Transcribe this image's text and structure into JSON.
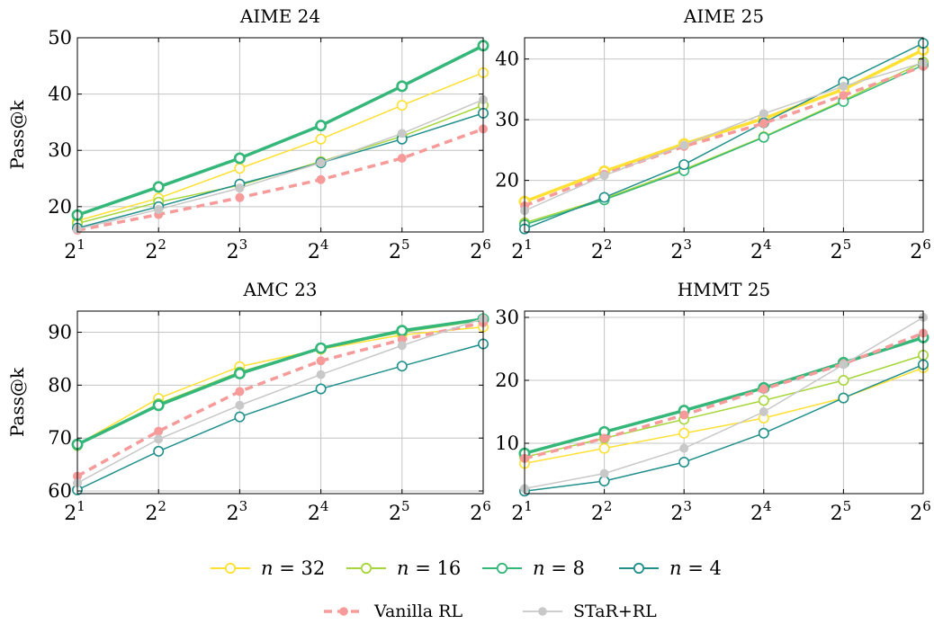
{
  "x_tick_base": "2",
  "x_tick_exponents": [
    "1",
    "2",
    "3",
    "4",
    "5",
    "6"
  ],
  "chart_data": [
    {
      "type": "line",
      "title": "AIME 24",
      "ylabel": "Pass@k",
      "x": [
        2,
        4,
        8,
        16,
        32,
        64
      ],
      "ylim": [
        15.5,
        50
      ],
      "yticks": [
        20,
        30,
        40,
        50
      ],
      "grid": true,
      "series": [
        {
          "name": "n = 32",
          "color": "#ffe033",
          "width": 1.5,
          "dash": "",
          "marker": "open",
          "values": [
            17.5,
            21.5,
            26.8,
            32.0,
            38.0,
            43.8
          ]
        },
        {
          "name": "n = 16",
          "color": "#a6d63a",
          "width": 1.5,
          "dash": "",
          "marker": "open",
          "values": [
            17.0,
            20.8,
            23.8,
            28.0,
            32.5,
            38.0
          ]
        },
        {
          "name": "n = 8",
          "color": "#35b779",
          "width": 3.5,
          "dash": "",
          "marker": "open",
          "values": [
            18.5,
            23.5,
            28.6,
            34.4,
            41.4,
            48.6
          ]
        },
        {
          "name": "n = 4",
          "color": "#21908d",
          "width": 1.5,
          "dash": "",
          "marker": "open",
          "values": [
            16.2,
            20.0,
            24.0,
            27.8,
            32.0,
            36.6
          ]
        },
        {
          "name": "Vanilla RL",
          "color": "#f79a9a",
          "width": 3.5,
          "dash": "9,6",
          "marker": "dot",
          "values": [
            15.8,
            18.6,
            21.6,
            24.8,
            28.6,
            33.8
          ]
        },
        {
          "name": "STaR+RL",
          "color": "#c8c8c8",
          "width": 1.5,
          "dash": "",
          "marker": "dot",
          "values": [
            16.0,
            19.5,
            23.3,
            27.8,
            33.0,
            39.0
          ]
        }
      ]
    },
    {
      "type": "line",
      "title": "AIME 25",
      "ylabel": "",
      "x": [
        2,
        4,
        8,
        16,
        32,
        64
      ],
      "ylim": [
        11.5,
        43.5
      ],
      "yticks": [
        20,
        30,
        40
      ],
      "grid": true,
      "series": [
        {
          "name": "n = 32",
          "color": "#ffe033",
          "width": 3.5,
          "dash": "",
          "marker": "open",
          "values": [
            16.5,
            21.5,
            26.0,
            30.2,
            35.0,
            41.5
          ]
        },
        {
          "name": "n = 16",
          "color": "#a6d63a",
          "width": 1.5,
          "dash": "",
          "marker": "open",
          "values": [
            13.0,
            17.0,
            21.8,
            27.2,
            33.2,
            39.5
          ]
        },
        {
          "name": "n = 8",
          "color": "#35b779",
          "width": 1.5,
          "dash": "",
          "marker": "open",
          "values": [
            12.7,
            16.8,
            21.6,
            27.1,
            33.0,
            39.0
          ]
        },
        {
          "name": "n = 4",
          "color": "#21908d",
          "width": 1.5,
          "dash": "",
          "marker": "open",
          "values": [
            12.0,
            17.2,
            22.6,
            29.5,
            36.2,
            42.6
          ]
        },
        {
          "name": "Vanilla RL",
          "color": "#f79a9a",
          "width": 3.5,
          "dash": "9,6",
          "marker": "dot",
          "values": [
            15.8,
            21.0,
            25.6,
            29.4,
            34.0,
            38.8
          ]
        },
        {
          "name": "STaR+RL",
          "color": "#c8c8c8",
          "width": 1.5,
          "dash": "",
          "marker": "dot",
          "values": [
            15.0,
            20.8,
            25.8,
            31.0,
            35.5,
            39.4
          ]
        }
      ]
    },
    {
      "type": "line",
      "title": "AMC 23",
      "ylabel": "Pass@k",
      "x": [
        2,
        4,
        8,
        16,
        32,
        64
      ],
      "ylim": [
        59.5,
        94
      ],
      "yticks": [
        60,
        70,
        80,
        90
      ],
      "grid": true,
      "series": [
        {
          "name": "n = 32",
          "color": "#ffe033",
          "width": 1.5,
          "dash": "",
          "marker": "open",
          "values": [
            68.8,
            77.5,
            83.5,
            86.8,
            89.5,
            91.0
          ]
        },
        {
          "name": "n = 16",
          "color": "#a6d63a",
          "width": 1.5,
          "dash": "",
          "marker": "open",
          "values": [
            68.6,
            76.5,
            82.5,
            87.0,
            90.0,
            92.3
          ]
        },
        {
          "name": "n = 8",
          "color": "#35b779",
          "width": 3.5,
          "dash": "",
          "marker": "open",
          "values": [
            68.8,
            76.2,
            82.2,
            87.0,
            90.3,
            92.5
          ]
        },
        {
          "name": "n = 4",
          "color": "#21908d",
          "width": 1.5,
          "dash": "",
          "marker": "open",
          "values": [
            60.2,
            67.5,
            74.0,
            79.3,
            83.6,
            87.8
          ]
        },
        {
          "name": "Vanilla RL",
          "color": "#f79a9a",
          "width": 3.5,
          "dash": "9,6",
          "marker": "dot",
          "values": [
            62.8,
            71.3,
            78.8,
            84.6,
            88.6,
            91.8
          ]
        },
        {
          "name": "STaR+RL",
          "color": "#c8c8c8",
          "width": 1.5,
          "dash": "",
          "marker": "dot",
          "values": [
            61.5,
            69.8,
            76.2,
            82.0,
            87.5,
            92.6
          ]
        }
      ]
    },
    {
      "type": "line",
      "title": "HMMT 25",
      "ylabel": "",
      "x": [
        2,
        4,
        8,
        16,
        32,
        64
      ],
      "ylim": [
        2,
        31
      ],
      "yticks": [
        10,
        20,
        30
      ],
      "grid": true,
      "series": [
        {
          "name": "n = 32",
          "color": "#ffe033",
          "width": 1.5,
          "dash": "",
          "marker": "open",
          "values": [
            6.8,
            9.2,
            11.6,
            14.0,
            17.2,
            22.0
          ]
        },
        {
          "name": "n = 16",
          "color": "#a6d63a",
          "width": 1.5,
          "dash": "",
          "marker": "open",
          "values": [
            7.8,
            10.8,
            13.8,
            16.8,
            20.0,
            24.0
          ]
        },
        {
          "name": "n = 8",
          "color": "#35b779",
          "width": 3.5,
          "dash": "",
          "marker": "open",
          "values": [
            8.4,
            11.8,
            15.2,
            18.8,
            22.8,
            26.8
          ]
        },
        {
          "name": "n = 4",
          "color": "#21908d",
          "width": 1.5,
          "dash": "",
          "marker": "open",
          "values": [
            2.4,
            4.0,
            7.0,
            11.6,
            17.2,
            22.5
          ]
        },
        {
          "name": "Vanilla RL",
          "color": "#f79a9a",
          "width": 3.5,
          "dash": "9,6",
          "marker": "dot",
          "values": [
            7.6,
            10.8,
            14.5,
            18.6,
            22.6,
            27.5
          ]
        },
        {
          "name": "STaR+RL",
          "color": "#c8c8c8",
          "width": 1.5,
          "dash": "",
          "marker": "dot",
          "values": [
            2.8,
            5.2,
            9.2,
            15.0,
            22.5,
            30.0
          ]
        }
      ]
    }
  ],
  "legend": {
    "row1": [
      {
        "var": "n",
        "eq": "=",
        "num": "32",
        "color": "#ffe033"
      },
      {
        "var": "n",
        "eq": "=",
        "num": "16",
        "color": "#a6d63a"
      },
      {
        "var": "n",
        "eq": "=",
        "num": "8",
        "color": "#35b779"
      },
      {
        "var": "n",
        "eq": "=",
        "num": "4",
        "color": "#21908d"
      }
    ],
    "row2": [
      {
        "label": "Vanilla RL",
        "color": "#f79a9a"
      },
      {
        "label": "STaR+RL",
        "color": "#c8c8c8"
      }
    ]
  }
}
